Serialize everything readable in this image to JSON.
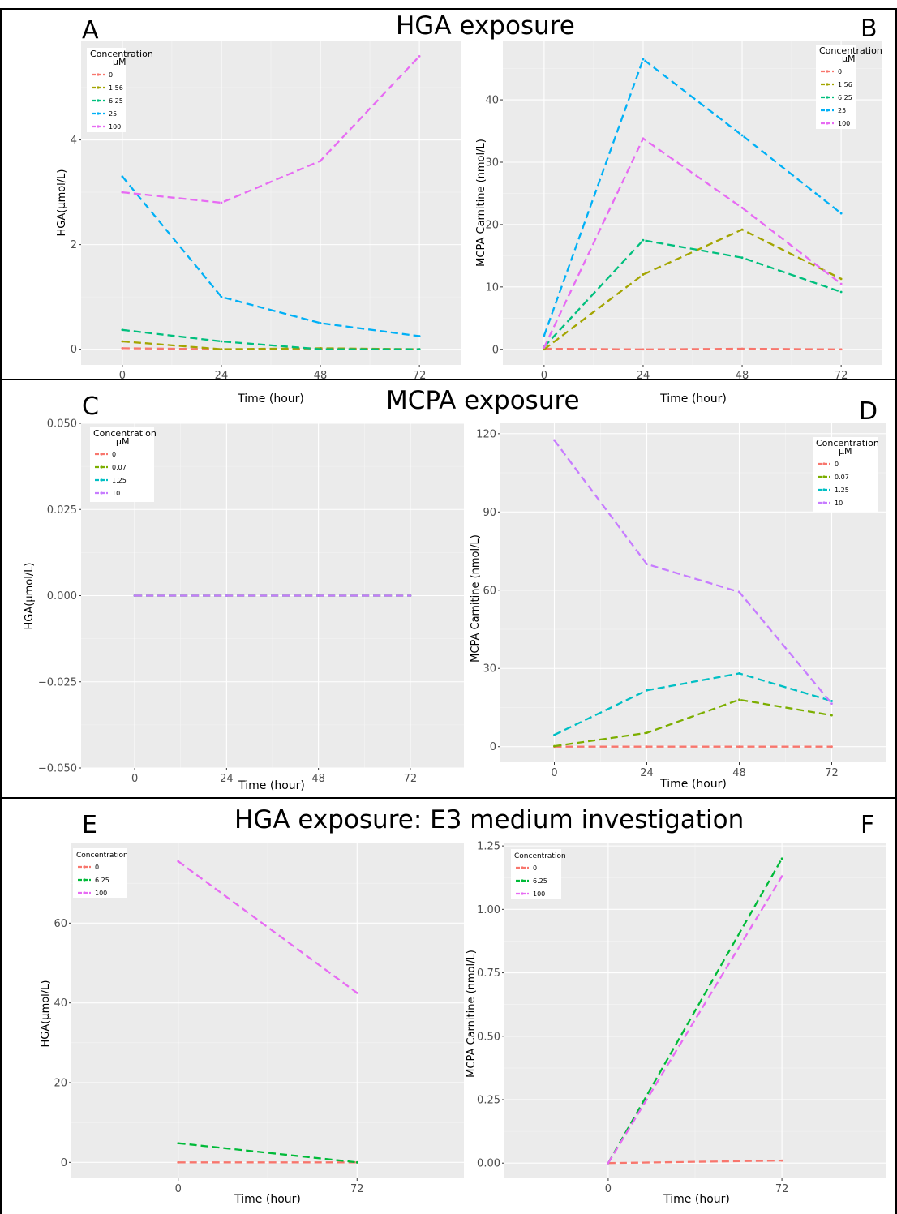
{
  "sections": [
    {
      "title": "HGA exposure"
    },
    {
      "title": "MCPA exposure"
    },
    {
      "title": "HGA exposure: E3 medium investigation"
    }
  ],
  "chart_data": [
    {
      "panel": "A",
      "type": "line",
      "xlabel": "Time (hour)",
      "ylabel": "HGA(µmol/L)",
      "x": [
        0,
        24,
        48,
        72
      ],
      "xticks": [
        "0",
        "24",
        "48",
        "72"
      ],
      "xlim": [
        -10,
        82
      ],
      "ylim": [
        -0.3,
        5.9
      ],
      "yticks": [
        0,
        2,
        4
      ],
      "ytick_labels": [
        "0",
        "2",
        "4"
      ],
      "legend": {
        "title": "Concentration\nµM",
        "position": "top-left"
      },
      "series": [
        {
          "name": "0",
          "color": "#F8766D",
          "values": [
            0.02,
            0.0,
            0.0,
            0.0
          ]
        },
        {
          "name": "1.56",
          "color": "#A3A500",
          "values": [
            0.15,
            0.0,
            0.02,
            0.0
          ]
        },
        {
          "name": "6.25",
          "color": "#00BF7D",
          "values": [
            0.37,
            0.15,
            0.0,
            0.0
          ]
        },
        {
          "name": "25",
          "color": "#00B0F6",
          "values": [
            3.3,
            1.0,
            0.5,
            0.25
          ]
        },
        {
          "name": "100",
          "color": "#E76BF3",
          "values": [
            3.0,
            2.8,
            3.6,
            5.6
          ]
        }
      ]
    },
    {
      "panel": "B",
      "type": "line",
      "xlabel": "Time (hour)",
      "ylabel": "MCPA Carnitine (nmol/L)",
      "x": [
        0,
        24,
        48,
        72
      ],
      "xticks": [
        "0",
        "24",
        "48",
        "72"
      ],
      "xlim": [
        -10,
        82
      ],
      "ylim": [
        -2.5,
        49.5
      ],
      "yticks": [
        0,
        10,
        20,
        30,
        40
      ],
      "ytick_labels": [
        "0",
        "10",
        "20",
        "30",
        "40"
      ],
      "legend": {
        "title": "Concentration\nµM",
        "position": "top-right"
      },
      "series": [
        {
          "name": "0",
          "color": "#F8766D",
          "values": [
            0.1,
            0.0,
            0.1,
            0.0
          ]
        },
        {
          "name": "1.56",
          "color": "#A3A500",
          "values": [
            0.0,
            12.0,
            19.2,
            11.3
          ]
        },
        {
          "name": "6.25",
          "color": "#00BF7D",
          "values": [
            0.4,
            17.5,
            14.7,
            9.2
          ]
        },
        {
          "name": "25",
          "color": "#00B0F6",
          "values": [
            2.2,
            46.5,
            34.3,
            21.8
          ]
        },
        {
          "name": "100",
          "color": "#E76BF3",
          "values": [
            0.3,
            33.8,
            22.7,
            10.5
          ]
        }
      ]
    },
    {
      "panel": "C",
      "type": "line",
      "xlabel": "Time (hour)",
      "ylabel": "HGA(µmol/L)",
      "x": [
        0,
        24,
        48,
        72
      ],
      "xticks": [
        "0",
        "24",
        "48",
        "72"
      ],
      "xlim": [
        -14,
        86
      ],
      "ylim": [
        -0.05,
        0.05
      ],
      "yticks": [
        -0.05,
        -0.025,
        0,
        0.025,
        0.05
      ],
      "ytick_labels": [
        "−0.050",
        "−0.025",
        "0.000",
        "0.025",
        "0.050"
      ],
      "legend": {
        "title": "Concentration\nµM",
        "position": "top-left"
      },
      "series": [
        {
          "name": "0",
          "color": "#F8766D",
          "values": [
            0,
            0,
            0,
            0
          ]
        },
        {
          "name": "0.07",
          "color": "#7CAE00",
          "values": [
            0,
            0,
            0,
            0
          ]
        },
        {
          "name": "1.25",
          "color": "#00BFC4",
          "values": [
            0,
            0,
            0,
            0
          ]
        },
        {
          "name": "10",
          "color": "#C77CFF",
          "values": [
            0,
            0,
            0,
            0
          ]
        }
      ]
    },
    {
      "panel": "D",
      "type": "line",
      "xlabel": "Time (hour)",
      "ylabel": "MCPA Carnitine (nmol/L)",
      "x": [
        0,
        24,
        48,
        72
      ],
      "xticks": [
        "0",
        "24",
        "48",
        "72"
      ],
      "xlim": [
        -14,
        86
      ],
      "ylim": [
        -6,
        124
      ],
      "yticks": [
        0,
        30,
        60,
        90,
        120
      ],
      "ytick_labels": [
        "0",
        "30",
        "60",
        "90",
        "120"
      ],
      "legend": {
        "title": "Concentration\nµM",
        "position": "top-right"
      },
      "series": [
        {
          "name": "0",
          "color": "#F8766D",
          "values": [
            0,
            0,
            0,
            0
          ]
        },
        {
          "name": "0.07",
          "color": "#7CAE00",
          "values": [
            0.2,
            5.3,
            18.0,
            12.0
          ]
        },
        {
          "name": "1.25",
          "color": "#00BFC4",
          "values": [
            4.5,
            21.6,
            28.1,
            17.5
          ]
        },
        {
          "name": "10",
          "color": "#C77CFF",
          "values": [
            117.5,
            70.0,
            59.3,
            16.5
          ]
        }
      ]
    },
    {
      "panel": "E",
      "type": "line",
      "xlabel": "Time (hour)",
      "ylabel": "HGA(µmol/L)",
      "x": [
        0,
        72
      ],
      "xticks": [
        "0",
        "72"
      ],
      "xlim": [
        -43,
        115
      ],
      "ylim": [
        -4,
        80
      ],
      "yticks": [
        0,
        20,
        40,
        60
      ],
      "ytick_labels": [
        "0",
        "20",
        "40",
        "60"
      ],
      "legend": {
        "title": "Concentration",
        "position": "top-left"
      },
      "series": [
        {
          "name": "0",
          "color": "#F8766D",
          "values": [
            0,
            0
          ]
        },
        {
          "name": "6.25",
          "color": "#00BA38",
          "values": [
            4.8,
            0.0
          ]
        },
        {
          "name": "100",
          "color": "#E76BF3",
          "values": [
            75.5,
            42.5
          ]
        }
      ]
    },
    {
      "panel": "F",
      "type": "line",
      "xlabel": "Time (hour)",
      "ylabel": "MCPA Carnitine (nmol/L)",
      "x": [
        0,
        72
      ],
      "xticks": [
        "0",
        "72"
      ],
      "xlim": [
        -43,
        115
      ],
      "ylim": [
        -0.06,
        1.26
      ],
      "yticks": [
        0,
        0.25,
        0.5,
        0.75,
        1.0,
        1.25
      ],
      "ytick_labels": [
        "0.00",
        "0.25",
        "0.50",
        "0.75",
        "1.00",
        "1.25"
      ],
      "legend": {
        "title": "Concentration",
        "position": "top-left"
      },
      "series": [
        {
          "name": "0",
          "color": "#F8766D",
          "values": [
            0.0,
            0.01
          ]
        },
        {
          "name": "6.25",
          "color": "#00BA38",
          "values": [
            0.0,
            1.2
          ]
        },
        {
          "name": "100",
          "color": "#E76BF3",
          "values": [
            0.0,
            1.13
          ]
        }
      ]
    }
  ]
}
